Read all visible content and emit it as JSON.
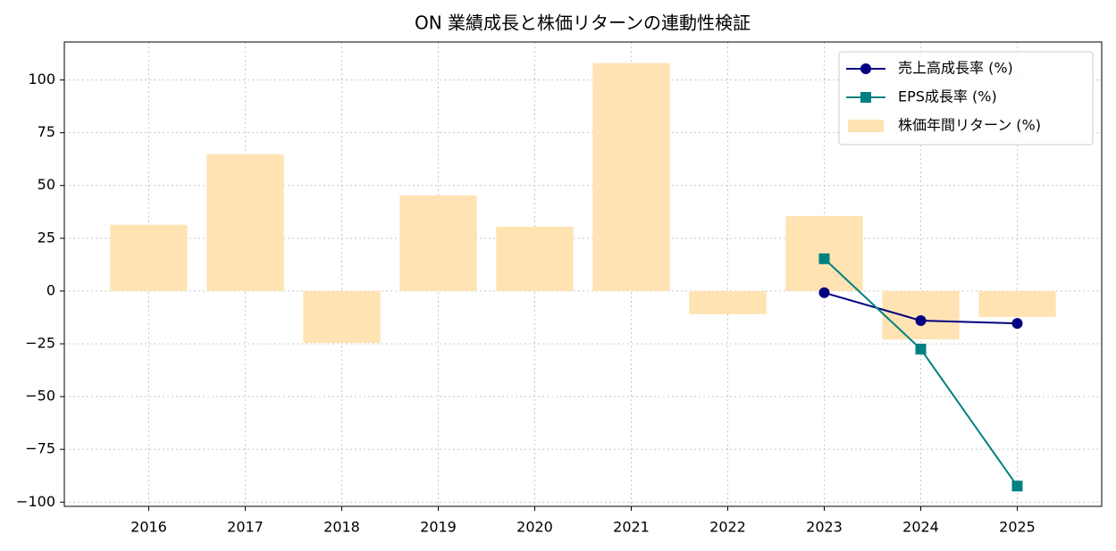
{
  "chart_data": {
    "type": "bar",
    "title": "ON 業績成長と株価リターンの連動性検証",
    "categories": [
      "2016",
      "2017",
      "2018",
      "2019",
      "2020",
      "2021",
      "2022",
      "2023",
      "2024",
      "2025"
    ],
    "series": [
      {
        "name": "売上高成長率 (%)",
        "type": "line",
        "marker": "circle",
        "color": "#000080",
        "values": [
          null,
          null,
          null,
          null,
          null,
          null,
          null,
          -0.8,
          -14.0,
          -15.3
        ]
      },
      {
        "name": "EPS成長率 (%)",
        "type": "line",
        "marker": "square",
        "color": "#008080",
        "values": [
          null,
          null,
          null,
          null,
          null,
          null,
          null,
          15.3,
          -27.5,
          -92.4
        ]
      },
      {
        "name": "株価年間リターン (%)",
        "type": "bar",
        "color": "#ffe3b3",
        "values": [
          31.4,
          64.8,
          -24.6,
          45.3,
          30.5,
          108.0,
          -11.0,
          35.6,
          -22.9,
          -12.3
        ]
      }
    ],
    "ylim": [
      -102,
      118
    ],
    "yticks": [
      {
        "value": -100,
        "label": "−100"
      },
      {
        "value": -75,
        "label": "−75"
      },
      {
        "value": -50,
        "label": "−50"
      },
      {
        "value": -25,
        "label": "−25"
      },
      0,
      25,
      50,
      75,
      100
    ],
    "grid": true,
    "legend": "upper right"
  }
}
